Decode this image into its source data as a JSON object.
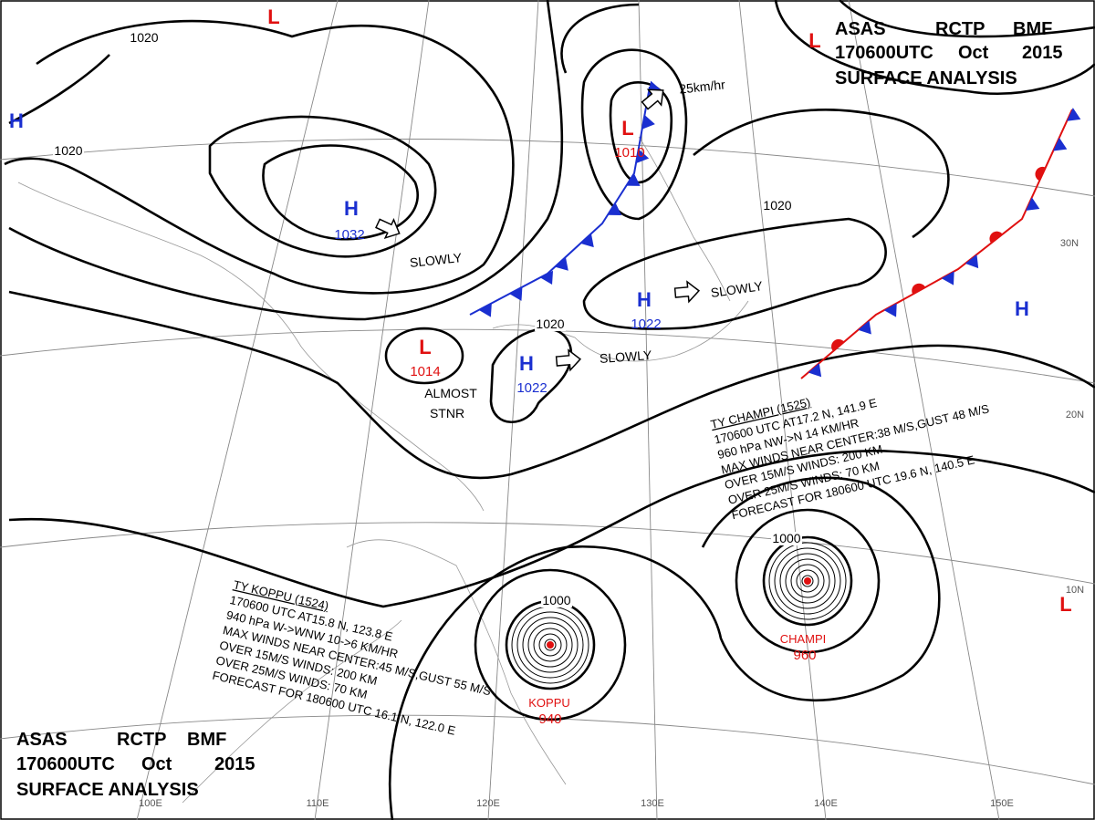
{
  "header": {
    "line1": [
      "ASAS",
      "RCTP",
      "BMF"
    ],
    "line2": [
      "170600UTC",
      "Oct",
      "2015"
    ],
    "line3": "SURFACE ANALYSIS"
  },
  "systems": [
    {
      "symbol": "H",
      "pressure": "1032"
    },
    {
      "symbol": "L",
      "pressure": "1014"
    },
    {
      "symbol": "H",
      "pressure": "1022"
    },
    {
      "symbol": "H",
      "pressure": "1022"
    },
    {
      "symbol": "L",
      "pressure": "1010"
    },
    {
      "symbol": "H"
    },
    {
      "symbol": "H"
    },
    {
      "symbol": "L"
    },
    {
      "symbol": "L"
    },
    {
      "symbol": "L"
    },
    {
      "name": "KOPPU",
      "pressure": "940"
    },
    {
      "name": "CHAMPI",
      "pressure": "960"
    }
  ],
  "motions": [
    "SLOWLY",
    "SLOWLY",
    "SLOWLY",
    "25km/hr",
    "ALMOST",
    "STNR"
  ],
  "isobar_labels": [
    "1020",
    "1020",
    "1020",
    "1020",
    "1000",
    "1000"
  ],
  "grid_labels": [
    "100E",
    "110E",
    "120E",
    "130E",
    "140E",
    "150E",
    "30N",
    "20N",
    "10N"
  ],
  "typhoons": [
    {
      "lines": [
        "TY  CHAMPI  (1525)",
        "170600 UTC  AT17.2 N, 141.9 E",
        "960 hPa  NW->N  14 KM/HR",
        "MAX WINDS NEAR CENTER:38 M/S,GUST 48 M/S",
        "OVER 15M/S WINDS: 200 KM",
        "OVER 25M/S WINDS: 70 KM",
        "FORECAST FOR 180600 UTC 19.6 N, 140.5 E"
      ]
    },
    {
      "lines": [
        "TY  KOPPU  (1524)",
        "170600 UTC  AT15.8 N, 123.8 E",
        "940 hPa  W->WNW  10->6 KM/HR",
        "MAX WINDS NEAR CENTER:45 M/S,GUST 55 M/S",
        "OVER 15M/S WINDS: 200 KM",
        "OVER 25M/S WINDS: 70 KM",
        "FORECAST FOR 180600 UTC 16.1 N, 122.0 E"
      ]
    }
  ]
}
